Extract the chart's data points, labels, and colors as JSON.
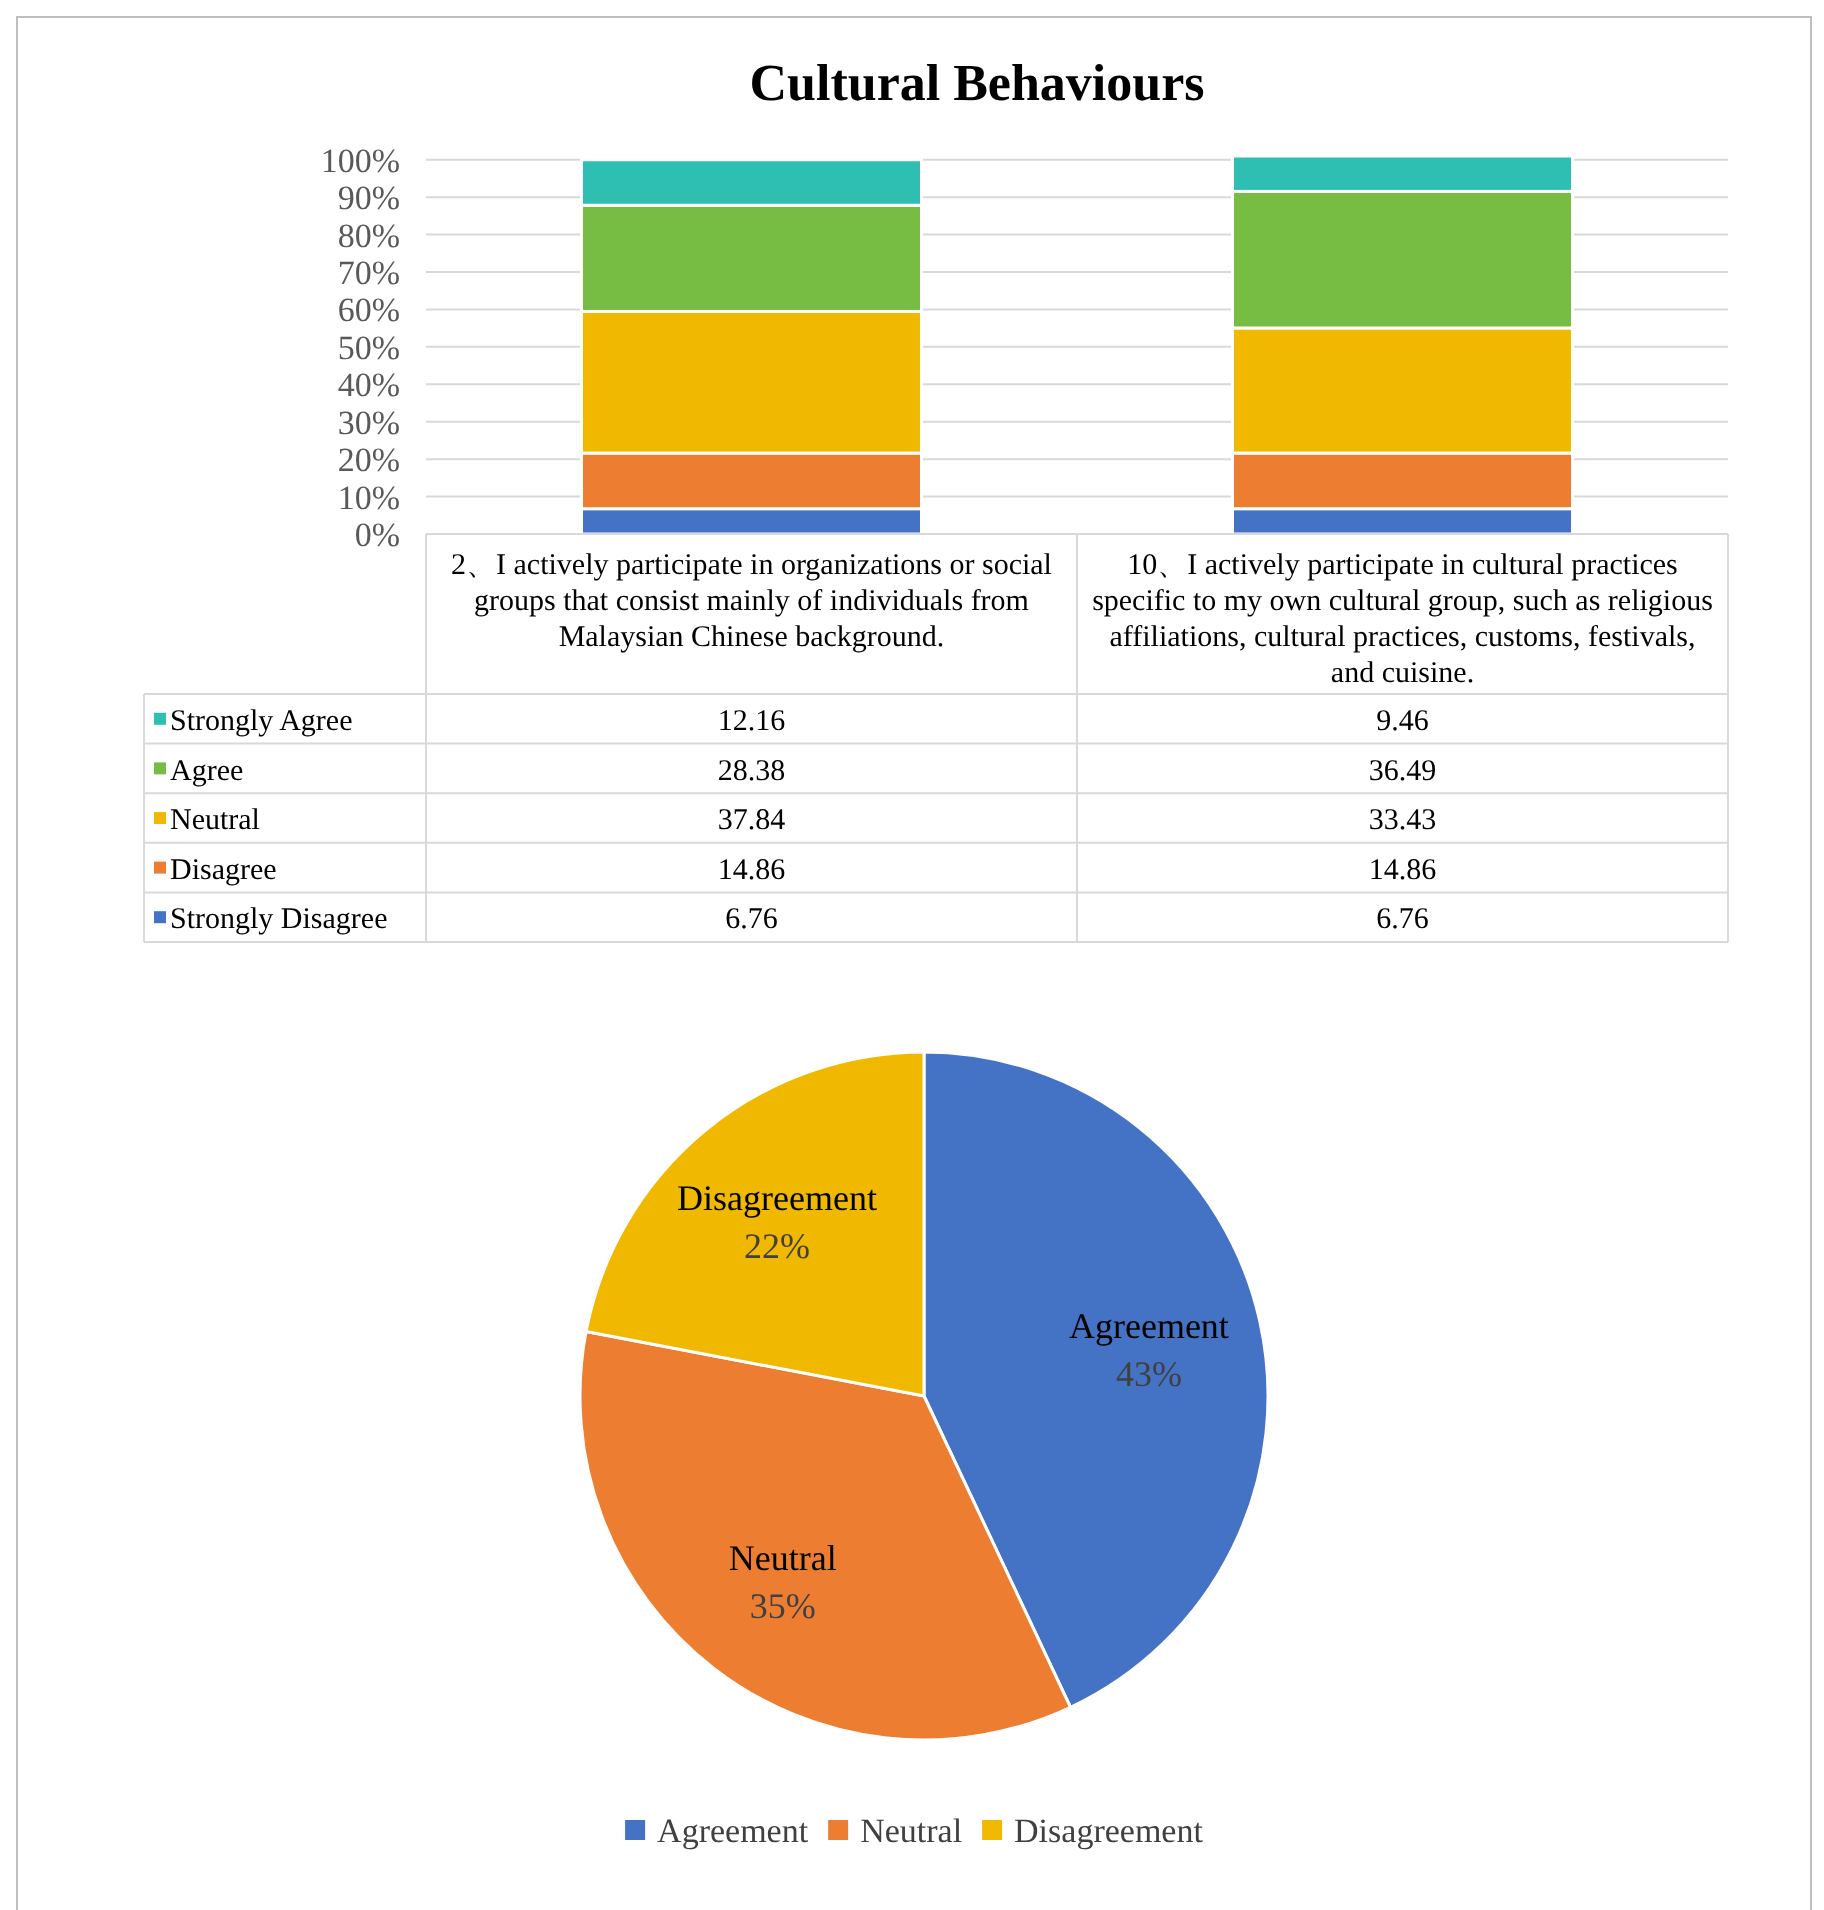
{
  "chart_data": [
    {
      "type": "bar",
      "title": "Cultural Behaviours",
      "stacked": true,
      "grid": "y",
      "data_labels": true,
      "legend": "bottom left",
      "categories": [
        "2、I actively participate in organizations or social groups that consist mainly of individuals from Malaysian Chinese background.",
        "10、I actively participate in cultural practices specific to my own cultural group, such as religious affiliations, cultural practices, customs, festivals, and cuisine."
      ],
      "ylim": [
        0,
        101
      ],
      "yticks": [
        {
          "value": 0,
          "label": "0%"
        },
        {
          "value": 10,
          "label": "10%"
        },
        {
          "value": 20,
          "label": "20%"
        },
        {
          "value": 30,
          "label": "30%"
        },
        {
          "value": 40,
          "label": "40%"
        },
        {
          "value": 50,
          "label": "50%"
        },
        {
          "value": 60,
          "label": "60%"
        },
        {
          "value": 70,
          "label": "70%"
        },
        {
          "value": 80,
          "label": "80%"
        },
        {
          "value": 90,
          "label": "90%"
        },
        {
          "value": 100,
          "label": "100%"
        }
      ],
      "series": [
        {
          "name": "Strongly Disagree",
          "color": "#4472c4",
          "values": [
            6.76,
            6.76
          ]
        },
        {
          "name": "Disagree",
          "color": "#ed7d31",
          "values": [
            14.86,
            14.86
          ]
        },
        {
          "name": "Neutral",
          "color": "#f1b800",
          "values": [
            37.84,
            33.43
          ]
        },
        {
          "name": "Agree",
          "color": "#77bc43",
          "values": [
            28.38,
            36.49
          ]
        },
        {
          "name": "Strongly Agree",
          "color": "#2fbfb2",
          "values": [
            12.16,
            9.46
          ]
        }
      ]
    },
    {
      "type": "pie",
      "categories": [
        "Agreement",
        "Neutral",
        "Disagreement"
      ],
      "values": [
        43,
        35,
        22
      ],
      "value_labels": [
        "43%",
        "35%",
        "22%"
      ],
      "colors": [
        "#4472c4",
        "#ed7d31",
        "#f1b800"
      ],
      "legend": "bottom"
    }
  ]
}
